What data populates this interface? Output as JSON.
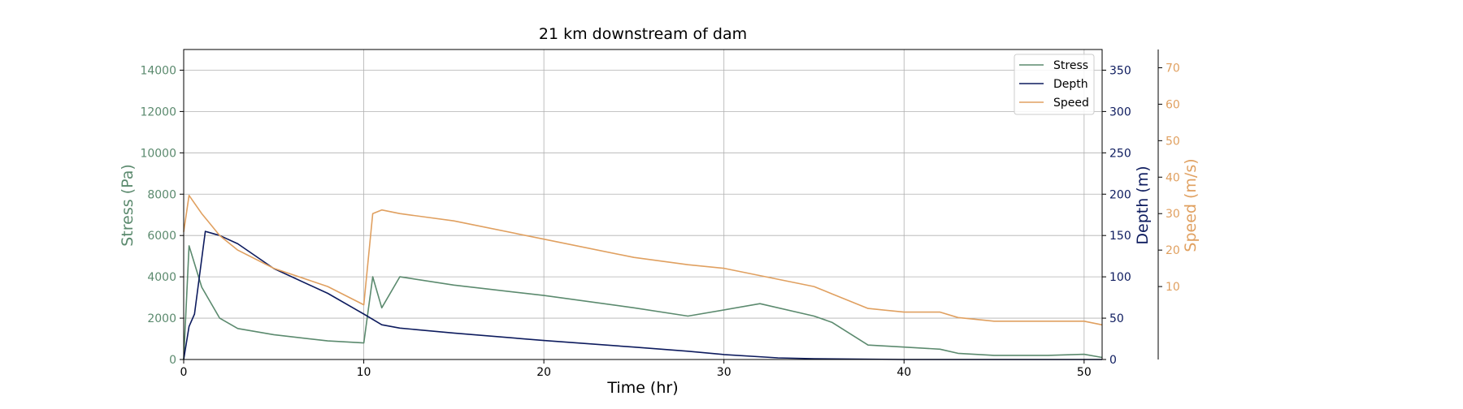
{
  "chart_data": {
    "type": "line",
    "title": "21 km downstream of dam",
    "xlabel": "Time (hr)",
    "xlim": [
      0,
      51
    ],
    "xticks": [
      0,
      10,
      20,
      30,
      40,
      50
    ],
    "grid": true,
    "legend_position": "top-right",
    "axes": [
      {
        "id": "stress",
        "label": "Stress (Pa)",
        "side": "left",
        "color": "#5b8a6e",
        "ylim": [
          0,
          15000
        ],
        "ticks": [
          0,
          2000,
          4000,
          6000,
          8000,
          10000,
          12000,
          14000
        ]
      },
      {
        "id": "depth",
        "label": "Depth (m)",
        "side": "right",
        "color": "#0d1b5e",
        "ylim": [
          0,
          375
        ],
        "ticks": [
          0,
          50,
          100,
          150,
          200,
          250,
          300,
          350
        ]
      },
      {
        "id": "speed",
        "label": "Speed (m/s)",
        "side": "right-outer",
        "color": "#e0a060",
        "ylim": [
          -10,
          75
        ],
        "ticks": [
          10,
          20,
          30,
          40,
          50,
          60,
          70
        ]
      }
    ],
    "series": [
      {
        "name": "Stress",
        "axis": "stress",
        "color": "#5b8a6e",
        "x": [
          0,
          0.3,
          1,
          2,
          3,
          5,
          8,
          10,
          10.5,
          11,
          12,
          15,
          20,
          25,
          28,
          30,
          32,
          35,
          36,
          38,
          40,
          42,
          43,
          45,
          48,
          50,
          51
        ],
        "y": [
          0,
          5500,
          3500,
          2000,
          1500,
          1200,
          900,
          800,
          4000,
          2500,
          4000,
          3600,
          3100,
          2500,
          2100,
          2400,
          2700,
          2100,
          1800,
          700,
          600,
          500,
          300,
          200,
          200,
          250,
          100
        ]
      },
      {
        "name": "Depth",
        "axis": "depth",
        "color": "#0d1b5e",
        "x": [
          0,
          0.3,
          0.6,
          1.2,
          2,
          3,
          5,
          8,
          10,
          11,
          12,
          15,
          20,
          25,
          28,
          30,
          33,
          35,
          40,
          45,
          50,
          51
        ],
        "y": [
          0,
          40,
          55,
          155,
          150,
          140,
          110,
          80,
          55,
          42,
          38,
          32,
          23,
          15,
          10,
          6,
          2,
          1,
          0,
          0,
          0,
          0
        ]
      },
      {
        "name": "Speed",
        "axis": "speed",
        "color": "#e0a060",
        "x": [
          0,
          0.3,
          1,
          2,
          3,
          5,
          8,
          10,
          10.5,
          11,
          12,
          15,
          20,
          25,
          28,
          30,
          32,
          35,
          36,
          38,
          40,
          42,
          43,
          45,
          48,
          50,
          51
        ],
        "y": [
          25,
          35,
          30,
          24,
          20,
          15,
          10,
          5,
          30,
          31,
          30,
          28,
          23,
          18,
          16,
          15,
          13,
          10,
          8,
          4,
          3,
          3,
          1.5,
          0.5,
          0.5,
          0.5,
          -0.5
        ]
      }
    ]
  }
}
